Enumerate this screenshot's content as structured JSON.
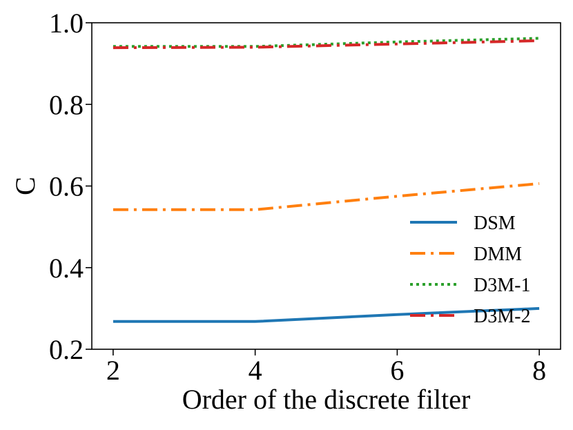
{
  "chart_data": {
    "type": "line",
    "x": [
      2,
      4,
      6,
      8
    ],
    "xlabel": "Order of the discrete filter",
    "ylabel": "C",
    "xlim": [
      1.7,
      8.3
    ],
    "ylim": [
      0.2,
      1.0
    ],
    "xticks": [
      "2",
      "4",
      "6",
      "8"
    ],
    "yticks": [
      "0.2",
      "0.4",
      "0.6",
      "0.8",
      "1.0"
    ],
    "grid": false,
    "legend_position": "lower-right",
    "series": [
      {
        "name": "DSM",
        "values": [
          0.268,
          0.268,
          0.285,
          0.3
        ],
        "color": "#1f77b4",
        "style": "solid"
      },
      {
        "name": "DMM",
        "values": [
          0.542,
          0.542,
          0.575,
          0.606
        ],
        "color": "#ff7f0e",
        "style": "dashdot"
      },
      {
        "name": "D3M-1",
        "values": [
          0.942,
          0.942,
          0.953,
          0.962
        ],
        "color": "#2ca02c",
        "style": "dotted"
      },
      {
        "name": "D3M-2",
        "values": [
          0.939,
          0.94,
          0.948,
          0.956
        ],
        "color": "#d62728",
        "style": "dashdot"
      }
    ]
  }
}
